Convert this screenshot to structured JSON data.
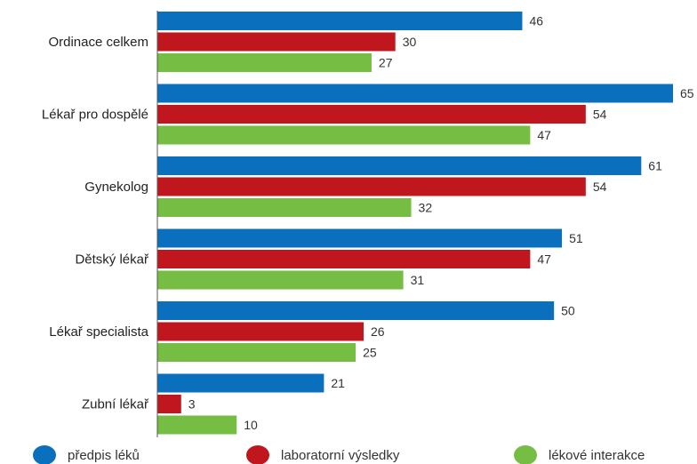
{
  "chart_data": {
    "type": "bar",
    "orientation": "horizontal",
    "categories": [
      "Ordinace celkem",
      "Lékař pro dospělé",
      "Gynekolog",
      "Dětský lékař",
      "Lékař specialista",
      "Zubní lékař"
    ],
    "series": [
      {
        "name": "předpis léků",
        "color": "#0a6fbd",
        "values": [
          46,
          65,
          61,
          51,
          50,
          21
        ]
      },
      {
        "name": "laboratorní výsledky",
        "color": "#c0171f",
        "values": [
          30,
          54,
          54,
          47,
          26,
          3
        ]
      },
      {
        "name": "lékové interakce",
        "color": "#76bd43",
        "values": [
          27,
          47,
          32,
          31,
          25,
          10
        ]
      }
    ],
    "xlim": [
      0,
      65
    ],
    "grid": false,
    "legend_position": "bottom",
    "title": "",
    "xlabel": "",
    "ylabel": ""
  }
}
